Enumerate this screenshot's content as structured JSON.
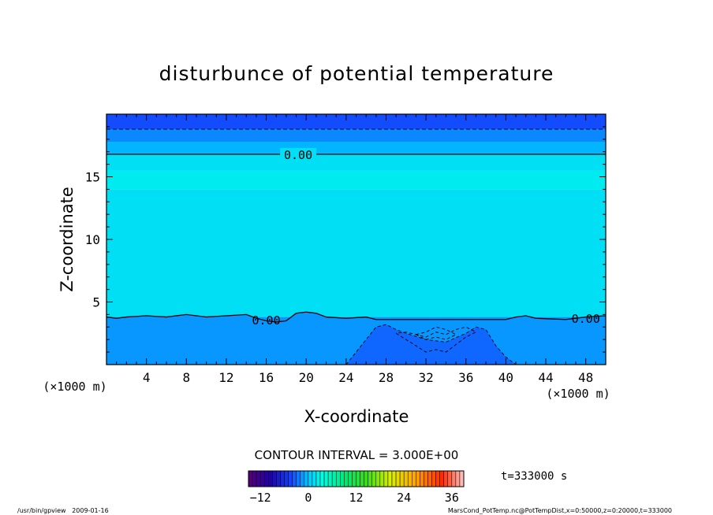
{
  "chart_data": {
    "type": "heatmap",
    "title": "disturbunce of potential temperature",
    "xlabel": "X-coordinate",
    "ylabel": "Z-coordinate",
    "x_unit": "(×1000 m)",
    "xlim": [
      0,
      50
    ],
    "ylim": [
      0,
      20
    ],
    "x_ticks": [
      4,
      8,
      12,
      16,
      20,
      24,
      28,
      32,
      36,
      40,
      44,
      48
    ],
    "y_ticks": [
      5,
      10,
      15
    ],
    "contour_interval_label": "CONTOUR INTERVAL = 3.000E+00",
    "contour_labels": [
      "0.00",
      "0.00",
      "0.00"
    ],
    "time_label": "t=333000 s",
    "colorbar": {
      "ticks": [
        -12,
        0,
        12,
        24,
        36
      ],
      "range": [
        -15,
        39
      ]
    },
    "field_layers": [
      {
        "zmin": 0,
        "zmax": 3.8,
        "value": -1.5
      },
      {
        "zmin": 3.8,
        "zmax": 14.0,
        "value": 1.5
      },
      {
        "zmin": 14.0,
        "zmax": 15.5,
        "value": 2.2
      },
      {
        "zmin": 15.5,
        "zmax": 16.8,
        "value": 1.5
      },
      {
        "zmin": 16.8,
        "zmax": 17.8,
        "value": -0.5
      },
      {
        "zmin": 17.8,
        "zmax": 18.8,
        "value": -2.0
      },
      {
        "zmin": 18.8,
        "zmax": 20.0,
        "value": -4.0
      }
    ],
    "zero_contour_low": [
      [
        0,
        3.8
      ],
      [
        1,
        3.7
      ],
      [
        2,
        3.8
      ],
      [
        4,
        3.9
      ],
      [
        6,
        3.8
      ],
      [
        8,
        4.0
      ],
      [
        10,
        3.8
      ],
      [
        12,
        3.9
      ],
      [
        14,
        4.0
      ],
      [
        15,
        3.7
      ],
      [
        16,
        3.5
      ],
      [
        17,
        3.4
      ],
      [
        18,
        3.5
      ],
      [
        19,
        4.1
      ],
      [
        20,
        4.2
      ],
      [
        21,
        4.1
      ],
      [
        22,
        3.8
      ],
      [
        24,
        3.7
      ],
      [
        26,
        3.8
      ],
      [
        27,
        3.6
      ],
      [
        28,
        3.6
      ],
      [
        32,
        3.6
      ],
      [
        36,
        3.6
      ],
      [
        40,
        3.6
      ],
      [
        41,
        3.8
      ],
      [
        42,
        3.9
      ],
      [
        43,
        3.7
      ],
      [
        46,
        3.6
      ],
      [
        48,
        3.8
      ],
      [
        50,
        3.9
      ]
    ],
    "zero_contour_high_z": 16.8,
    "dashed_contour_top_z": 18.8,
    "dashed_contours_lower": [
      [
        [
          24,
          0
        ],
        [
          25,
          1.0
        ],
        [
          26,
          2.0
        ],
        [
          27,
          3.0
        ],
        [
          28,
          3.2
        ],
        [
          29,
          2.8
        ],
        [
          30,
          2.5
        ],
        [
          32,
          2.0
        ],
        [
          34,
          1.8
        ],
        [
          36,
          2.5
        ],
        [
          37,
          3.0
        ],
        [
          38,
          2.8
        ],
        [
          39,
          1.5
        ],
        [
          40,
          0.6
        ],
        [
          41,
          0
        ]
      ],
      [
        [
          29,
          2.5
        ],
        [
          30,
          2.0
        ],
        [
          31,
          1.5
        ],
        [
          32,
          1.0
        ],
        [
          33,
          1.2
        ],
        [
          34,
          1.0
        ],
        [
          35,
          1.6
        ],
        [
          36,
          2.2
        ],
        [
          37,
          2.6
        ],
        [
          36,
          3.0
        ],
        [
          35,
          2.8
        ],
        [
          34,
          2.4
        ],
        [
          33,
          2.6
        ],
        [
          32,
          2.2
        ],
        [
          30,
          2.6
        ],
        [
          29,
          2.5
        ]
      ],
      [
        [
          31,
          2.4
        ],
        [
          32,
          2.6
        ],
        [
          33,
          3.0
        ],
        [
          34,
          2.8
        ],
        [
          35,
          2.4
        ],
        [
          34,
          2.0
        ],
        [
          33,
          2.2
        ],
        [
          32,
          2.0
        ],
        [
          31,
          2.4
        ]
      ]
    ],
    "footer_left": "/usr/bin/gpview   2009-01-16",
    "footer_right": "MarsCond_PotTemp.nc@PotTempDist,x=0:50000,z=0:20000,t=333000"
  }
}
